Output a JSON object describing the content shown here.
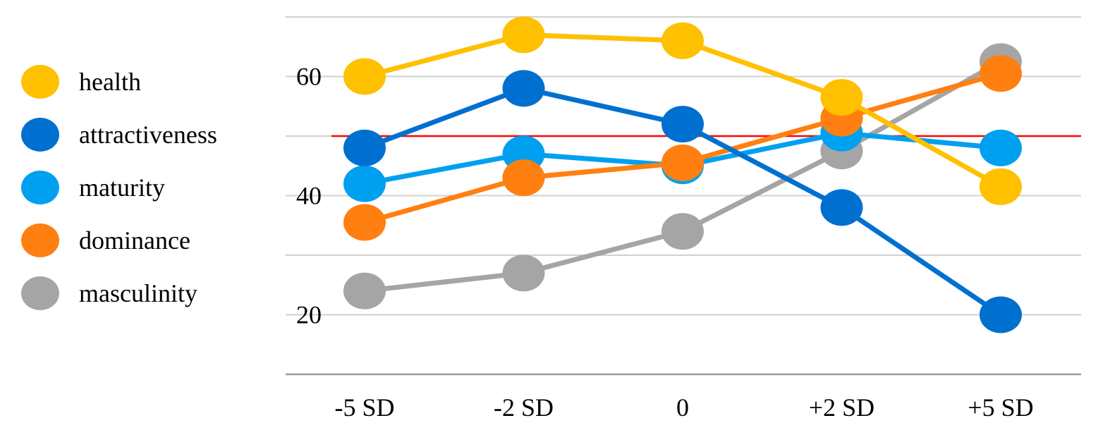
{
  "chart_data": {
    "type": "line",
    "title": "",
    "xlabel": "",
    "ylabel": "",
    "categories": [
      "-5 SD",
      "-2 SD",
      "0",
      "+2 SD",
      "+5 SD"
    ],
    "ylim": [
      10,
      72
    ],
    "yticks": [
      20,
      40,
      60
    ],
    "gridlines": [
      10,
      20,
      30,
      40,
      50,
      60,
      70
    ],
    "grid": true,
    "legend_position": "left",
    "reference_line": {
      "value": 50,
      "color": "#ff0000"
    },
    "series": [
      {
        "name": "masculinity",
        "color": "#a5a5a5",
        "values": [
          24,
          27,
          34,
          47.5,
          62.5
        ]
      },
      {
        "name": "maturity",
        "color": "#00a0f0",
        "values": [
          42,
          47,
          45,
          50.5,
          48
        ]
      },
      {
        "name": "dominance",
        "color": "#ff7f10",
        "values": [
          35.5,
          43,
          45.5,
          53,
          60.5
        ]
      },
      {
        "name": "attractiveness",
        "color": "#0070d0",
        "values": [
          48,
          58,
          52,
          38,
          20
        ]
      },
      {
        "name": "health",
        "color": "#ffc000",
        "values": [
          60,
          67,
          66,
          56.5,
          41.5
        ]
      }
    ]
  },
  "legend": {
    "items": [
      {
        "label": "health",
        "color": "#ffc000"
      },
      {
        "label": "attractiveness",
        "color": "#0070d0"
      },
      {
        "label": "maturity",
        "color": "#00a0f0"
      },
      {
        "label": "dominance",
        "color": "#ff7f10"
      },
      {
        "label": "masculinity",
        "color": "#a5a5a5"
      }
    ]
  }
}
